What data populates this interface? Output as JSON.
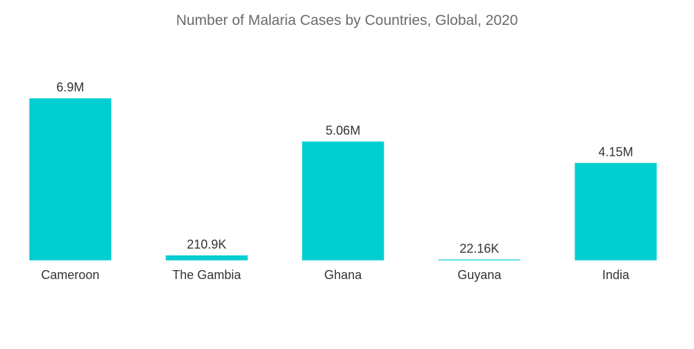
{
  "chart_data": {
    "type": "bar",
    "title": "Number of Malaria Cases by Countries, Global, 2020",
    "xlabel": "",
    "ylabel": "",
    "categories": [
      "Cameroon",
      "The Gambia",
      "Ghana",
      "Guyana",
      "India"
    ],
    "values": [
      6900000,
      210900,
      5060000,
      22160,
      4150000
    ],
    "data_labels": [
      "6.9M",
      "210.9K",
      "5.06M",
      "22.16K",
      "4.15M"
    ],
    "ylim": [
      0,
      6900000
    ],
    "grid": false,
    "legend": "none",
    "bar_color": "#00ced1"
  }
}
